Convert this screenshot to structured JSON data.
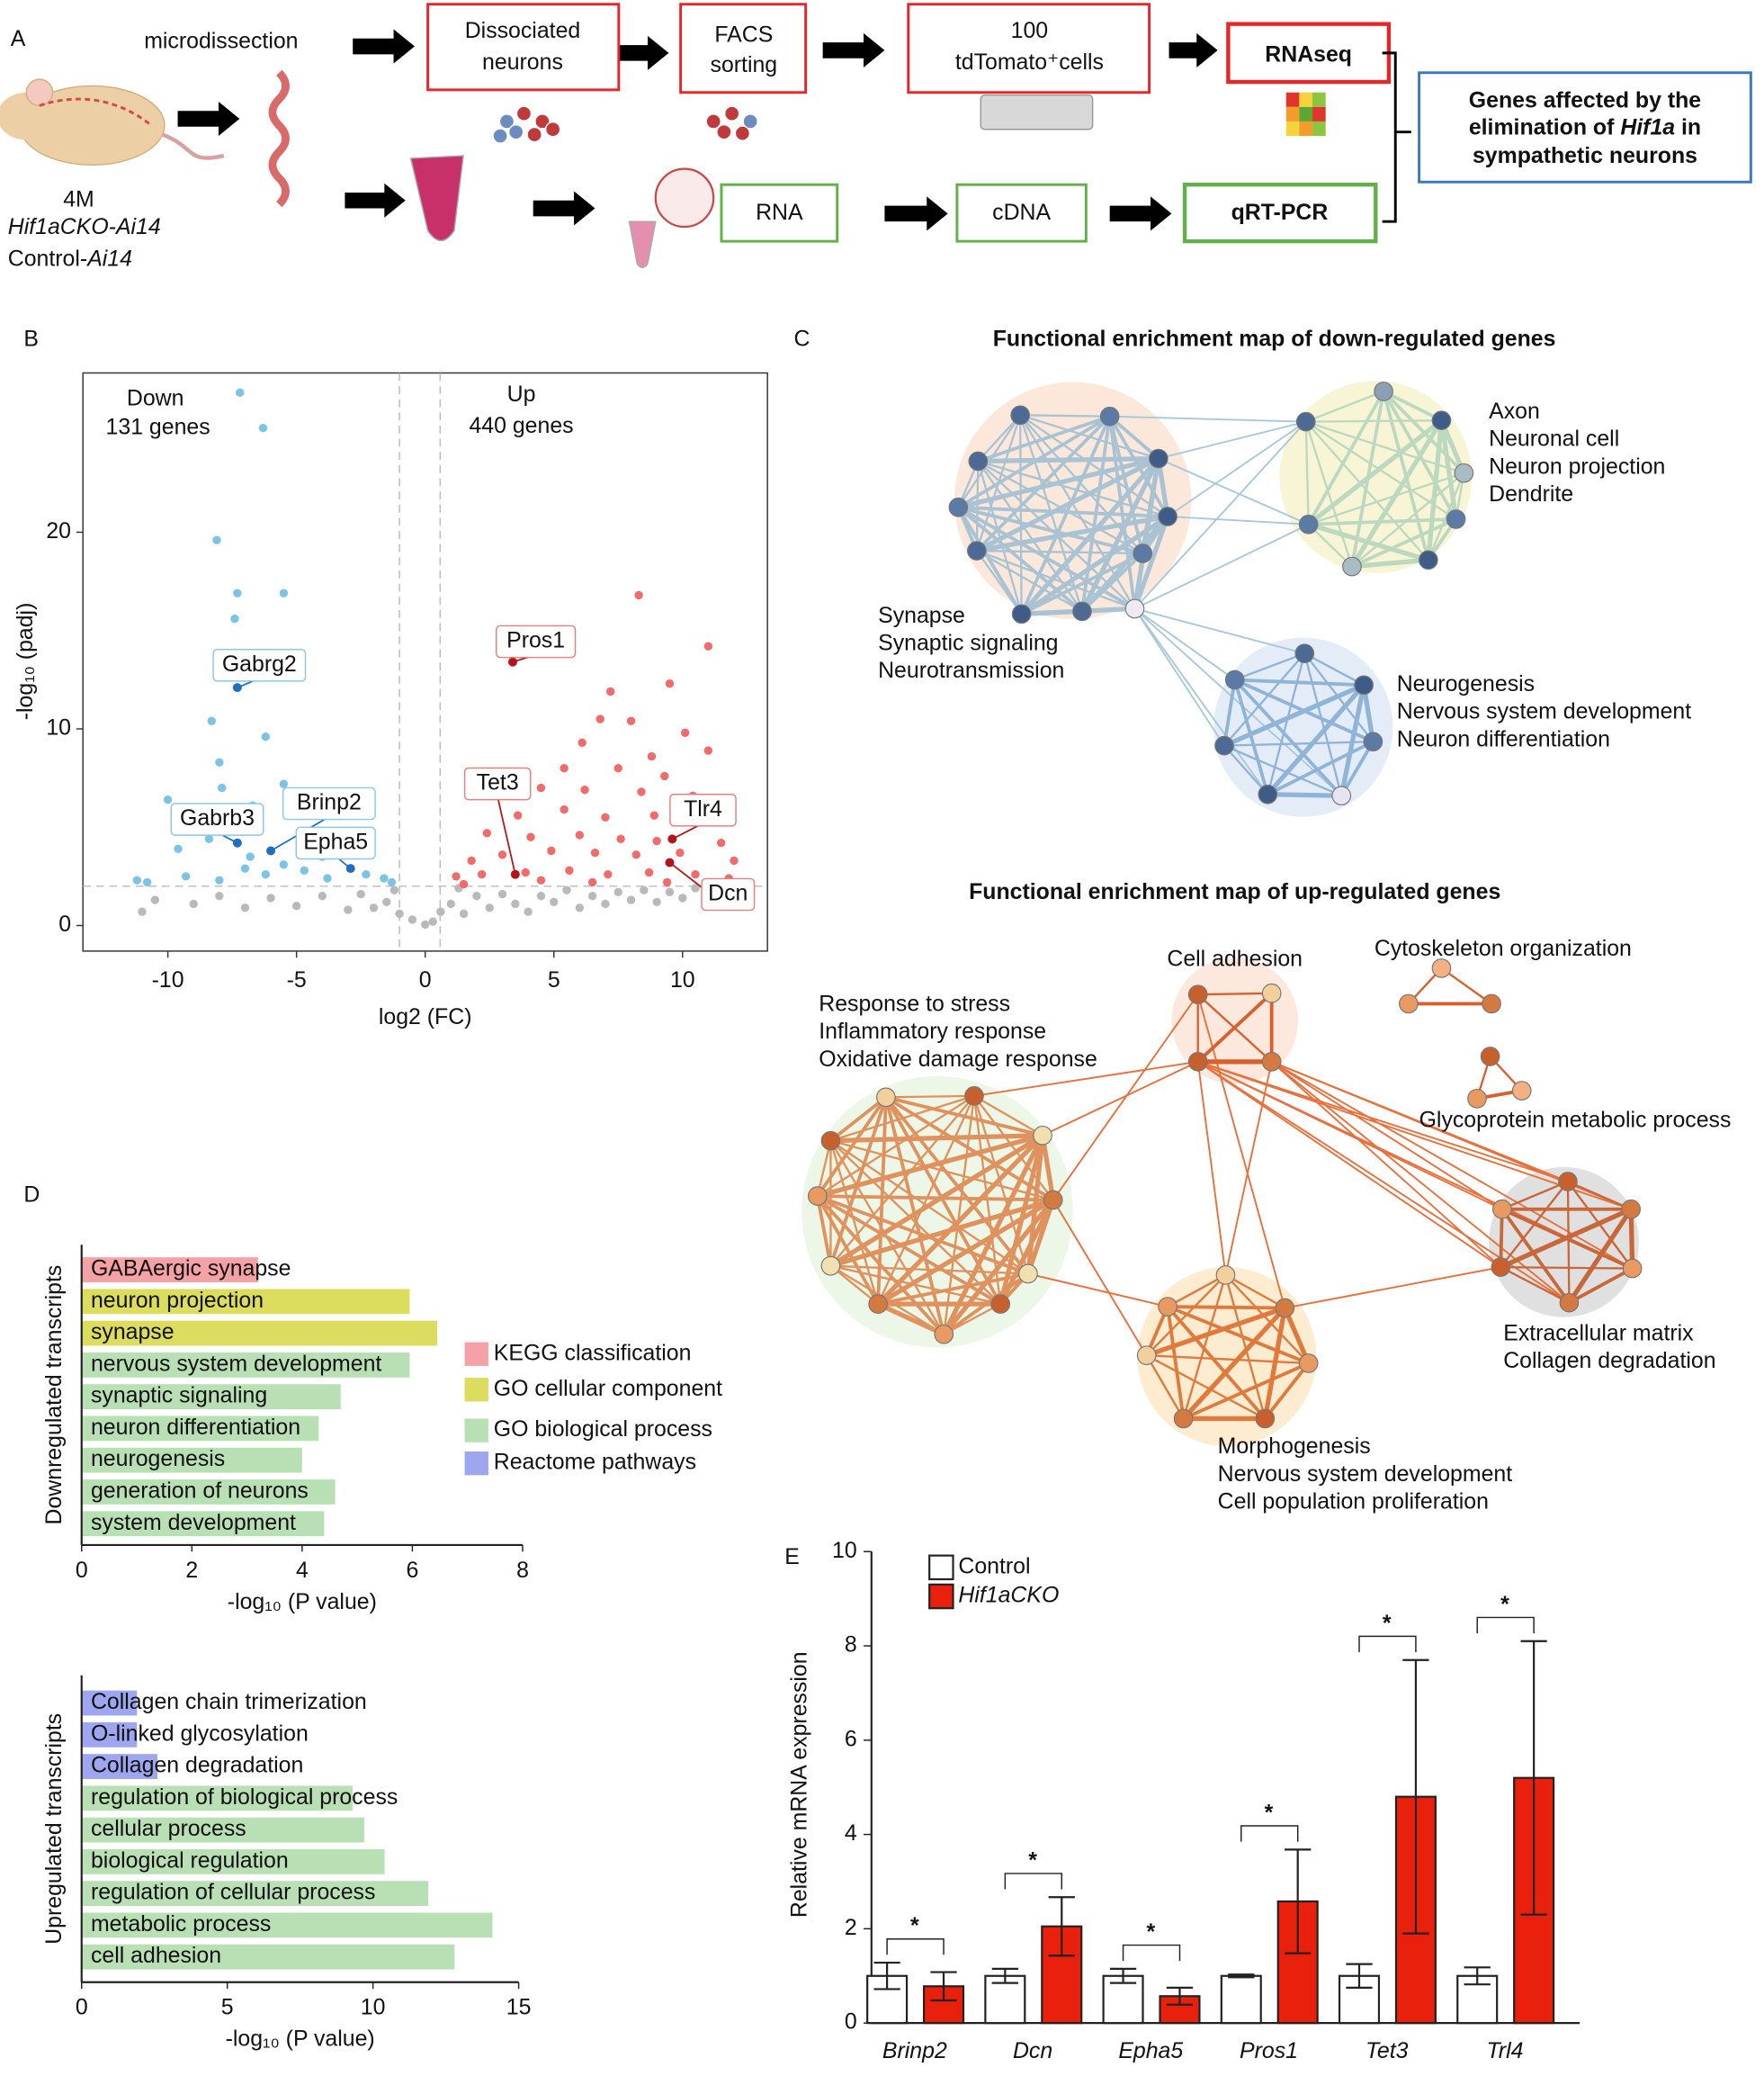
{
  "panel_a": {
    "label": "A",
    "microdissection": "microdissection",
    "dissociated": [
      "Dissociated",
      "neurons"
    ],
    "facs": [
      "FACS",
      "sorting"
    ],
    "cells": [
      "100",
      "tdTomato⁺cells"
    ],
    "rnaseq": "RNAseq",
    "rna": "RNA",
    "cdna": "cDNA",
    "qrtpcr": "qRT-PCR",
    "mouse": {
      "age": "4M",
      "line1": "Hif1aCKO-Ai14",
      "line2": [
        "Control-",
        "Ai14"
      ]
    },
    "outcome": {
      "line1": "Genes affected by the",
      "line2": [
        "elimination of ",
        "Hif1a",
        " in"
      ],
      "line3": "sympathetic neurons"
    }
  },
  "panel_c": {
    "label": "C",
    "down": {
      "title": "Functional enrichment map of down-regulated genes",
      "groups": [
        [
          "Axon",
          "Neuronal cell",
          "Neuron projection",
          "Dendrite"
        ],
        [
          "Synapse",
          "Synaptic signaling",
          "Neurotransmission"
        ],
        [
          "Neurogenesis",
          "Nervous system development",
          "Neuron differentiation"
        ]
      ]
    },
    "up": {
      "title": "Functional enrichment map of up-regulated genes",
      "groups": [
        [
          "Response to stress",
          "Inflammatory response",
          "Oxidative damage response"
        ],
        [
          "Cell adhesion"
        ],
        [
          "Cytoskeleton organization"
        ],
        [
          "Glycoprotein metabolic process"
        ],
        [
          "Extracellular matrix",
          "Collagen degradation"
        ],
        [
          "Morphogenesis",
          "Nervous system development",
          "Cell population proliferation"
        ]
      ]
    }
  },
  "chart_data": [
    {
      "type": "scatter",
      "label": "B",
      "xlabel": "log2 (FC)",
      "ylabel": "-log₁₀ (padj)",
      "xlim": [
        -13.3,
        13.3
      ],
      "ylim": [
        -1.3,
        28.1
      ],
      "xticks": [
        -10,
        -5,
        0,
        5,
        10
      ],
      "yticks": [
        0,
        10,
        20
      ],
      "thresholds": {
        "x": [
          -1,
          0.58
        ],
        "y": 2
      },
      "series": [
        {
          "name": "Down",
          "count_label": "131 genes",
          "color": "#7cc4e6",
          "x": [
            -7.2,
            -6.3,
            -8.1,
            -7.3,
            -5.5,
            -7.4,
            -8.3,
            -6.2,
            -8.0,
            -7.9,
            -5.5,
            -10.0,
            -6.7,
            -9.0,
            -5.0,
            -4.2,
            -9.6,
            -8.4,
            -6.8,
            -5.5,
            -4.7,
            -10.8,
            -9.3,
            -8.0,
            -6.2,
            -3.8,
            -2.3,
            -1.6,
            -11.2,
            -7.0,
            -4.0,
            -1.3
          ],
          "y": [
            27.1,
            25.3,
            19.6,
            16.9,
            16.9,
            15.6,
            10.4,
            9.6,
            8.3,
            7.0,
            7.2,
            6.4,
            6.1,
            5.6,
            5.6,
            4.6,
            3.9,
            4.4,
            3.5,
            3.1,
            2.8,
            2.2,
            2.5,
            2.3,
            2.6,
            2.4,
            2.6,
            2.4,
            2.3,
            2.9,
            3.5,
            2.2
          ]
        },
        {
          "name": "Up",
          "count_label": "440 genes",
          "color": "#f26b6b",
          "x": [
            8.3,
            11.0,
            7.2,
            9.5,
            6.8,
            8.0,
            10.1,
            6.1,
            8.8,
            11.0,
            5.4,
            7.5,
            9.3,
            4.5,
            6.2,
            8.4,
            10.4,
            3.6,
            5.4,
            7.0,
            8.9,
            10.9,
            2.4,
            4.1,
            6.0,
            7.6,
            9.0,
            11.5,
            1.8,
            3.0,
            4.9,
            6.6,
            8.2,
            9.9,
            12.0,
            1.2,
            2.2,
            3.9,
            5.6,
            7.1,
            8.7,
            10.5,
            11.8,
            4.5,
            6.5,
            9.4,
            1.5
          ],
          "y": [
            16.8,
            14.2,
            11.9,
            12.3,
            10.5,
            10.4,
            9.8,
            9.3,
            8.6,
            8.9,
            8.0,
            8.0,
            7.6,
            7.0,
            6.9,
            6.8,
            6.6,
            5.6,
            5.9,
            5.5,
            5.6,
            5.4,
            4.7,
            4.5,
            4.6,
            4.4,
            4.3,
            4.2,
            3.3,
            3.6,
            3.8,
            3.7,
            3.6,
            3.7,
            3.3,
            2.5,
            2.6,
            2.7,
            2.8,
            2.6,
            2.7,
            2.6,
            2.4,
            2.3,
            2.2,
            2.2,
            2.1
          ]
        },
        {
          "color": "#b9b9b9",
          "x": [
            -10.5,
            -9.0,
            -8.0,
            -7.0,
            -6.0,
            -5.0,
            -4.0,
            -3.0,
            -2.5,
            -2.0,
            -1.5,
            -1.0,
            -0.5,
            0,
            0.3,
            0.6,
            1.0,
            1.5,
            2.0,
            2.5,
            3.0,
            3.5,
            4.0,
            4.5,
            5.0,
            5.5,
            6.0,
            6.5,
            7.0,
            7.5,
            8.0,
            8.5,
            9.0,
            9.5,
            10.0,
            10.5,
            11.0,
            -11.0,
            -1.2,
            1.3
          ],
          "y": [
            1.3,
            1.1,
            1.5,
            0.9,
            1.4,
            1.0,
            1.5,
            0.8,
            1.6,
            0.9,
            1.2,
            0.6,
            0.3,
            0.05,
            0.2,
            0.7,
            1.1,
            0.6,
            1.5,
            0.9,
            1.6,
            1.1,
            0.7,
            1.5,
            1.2,
            1.8,
            0.9,
            1.5,
            1.1,
            1.7,
            1.3,
            1.8,
            1.2,
            1.7,
            1.4,
            1.9,
            1.6,
            0.7,
            1.8,
            1.9
          ]
        }
      ],
      "annotations": [
        {
          "text": "Gabrg2",
          "x": -7.3,
          "y": 12.1,
          "color": "#1f6fc0"
        },
        {
          "text": "Gabrb3",
          "x": -7.3,
          "y": 4.2,
          "color": "#1f6fc0"
        },
        {
          "text": "Brinp2",
          "x": -6.0,
          "y": 3.8,
          "color": "#1f6fc0"
        },
        {
          "text": "Epha5",
          "x": -2.9,
          "y": 2.9,
          "color": "#1f6fc0"
        },
        {
          "text": "Pros1",
          "x": 3.4,
          "y": 13.4,
          "color": "#b3141a"
        },
        {
          "text": "Tet3",
          "x": 3.5,
          "y": 2.6,
          "color": "#b3141a"
        },
        {
          "text": "Tlr4",
          "x": 9.6,
          "y": 4.4,
          "color": "#b3141a"
        },
        {
          "text": "Dcn",
          "x": 9.5,
          "y": 3.2,
          "color": "#b3141a"
        }
      ]
    },
    {
      "type": "barh",
      "label": "D",
      "ylabel": "Downregulated transcripts",
      "xlabel": "-log₁₀ (P value)",
      "xlim": [
        0,
        8
      ],
      "xticks": [
        0,
        2,
        4,
        6,
        8
      ],
      "categories": [
        "GABAergic synapse",
        "neuron projection",
        "synapse",
        "nervous system development",
        "synaptic signaling",
        "neuron differentiation",
        "neurogenesis",
        "generation of neurons",
        "system development"
      ],
      "values": [
        3.2,
        5.95,
        6.45,
        5.95,
        4.7,
        4.3,
        4.0,
        4.6,
        4.4
      ],
      "colors": [
        "#f4a2a6",
        "#dcdc5e",
        "#dcdc5e",
        "#b9e0b5",
        "#b9e0b5",
        "#b9e0b5",
        "#b9e0b5",
        "#b9e0b5",
        "#b9e0b5"
      ],
      "legend": [
        {
          "name": "KEGG classification",
          "color": "#f4a2a6"
        },
        {
          "name": "GO cellular component",
          "color": "#dcdc5e"
        },
        {
          "name": "GO biological process",
          "color": "#b9e0b5"
        },
        {
          "name": "Reactome pathways",
          "color": "#9ea6f0"
        }
      ]
    },
    {
      "type": "barh",
      "ylabel": "Upregulated transcripts",
      "xlabel": "-log₁₀ (P value)",
      "xlim": [
        0,
        15
      ],
      "xticks": [
        0,
        5,
        10,
        15
      ],
      "categories": [
        "Collagen chain trimerization",
        "O-linked glycosylation",
        "Collagen degradation",
        "regulation of biological process",
        "cellular process",
        "biological regulation",
        "regulation of cellular process",
        "metabolic process",
        "cell adhesion"
      ],
      "values": [
        1.9,
        1.9,
        2.6,
        9.3,
        9.7,
        10.4,
        11.9,
        14.1,
        12.8
      ],
      "colors": [
        "#9ea6f0",
        "#9ea6f0",
        "#9ea6f0",
        "#b9e0b5",
        "#b9e0b5",
        "#b9e0b5",
        "#b9e0b5",
        "#b9e0b5",
        "#b9e0b5"
      ]
    },
    {
      "type": "bar",
      "label": "E",
      "ylabel": "Relative mRNA expression",
      "ylim": [
        0,
        10
      ],
      "yticks": [
        0,
        2,
        4,
        6,
        8,
        10
      ],
      "categories": [
        "Brinp2",
        "Dcn",
        "Epha5",
        "Pros1",
        "Tet3",
        "Trl4"
      ],
      "series": [
        {
          "name": "Control",
          "color": "#ffffff",
          "values": [
            1,
            1,
            1,
            1,
            1,
            1
          ],
          "errors": [
            0.28,
            0.15,
            0.15,
            0.03,
            0.25,
            0.18
          ]
        },
        {
          "name": "Hif1aCKO",
          "color": "#e8200c",
          "values": [
            0.78,
            2.05,
            0.57,
            2.58,
            4.8,
            5.2
          ],
          "errors": [
            0.3,
            0.62,
            0.18,
            1.1,
            2.9,
            2.9
          ]
        }
      ],
      "significance": [
        "*",
        "*",
        "*",
        "*",
        "*",
        "*"
      ]
    }
  ]
}
